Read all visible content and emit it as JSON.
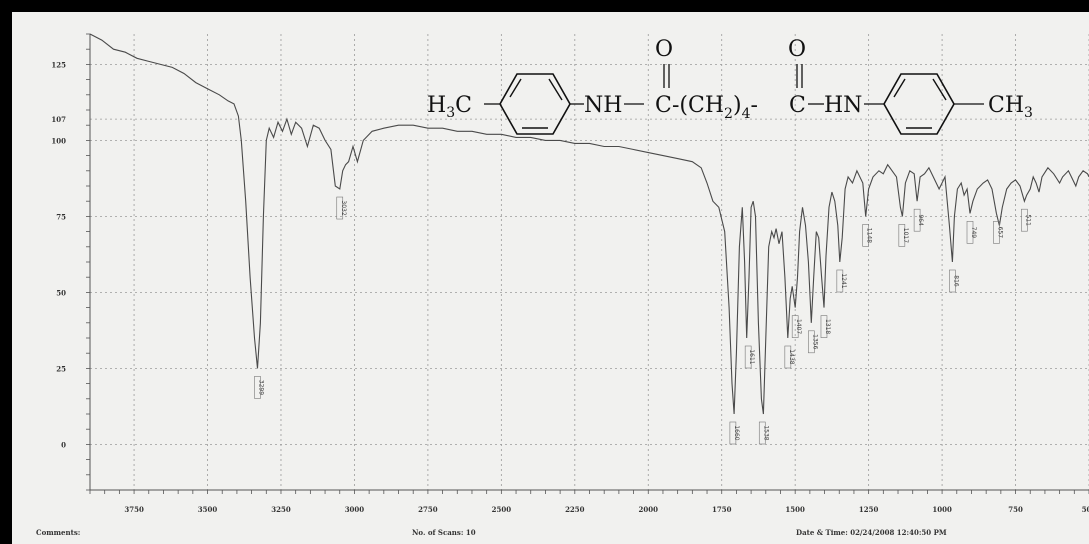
{
  "chart_data": {
    "type": "line",
    "title": "",
    "xlabel": "",
    "ylabel": "",
    "xlim": [
      3900,
      500
    ],
    "ylim": [
      -15,
      135
    ],
    "x_ticks": [
      {
        "value": 3750,
        "label": "3750"
      },
      {
        "value": 3500,
        "label": "3500"
      },
      {
        "value": 3250,
        "label": "3250"
      },
      {
        "value": 3000,
        "label": "3000"
      },
      {
        "value": 2750,
        "label": "2750"
      },
      {
        "value": 2500,
        "label": "2500"
      },
      {
        "value": 2250,
        "label": "2250"
      },
      {
        "value": 2000,
        "label": "2000"
      },
      {
        "value": 1750,
        "label": "1750"
      },
      {
        "value": 1500,
        "label": "1500"
      },
      {
        "value": 1250,
        "label": "1250"
      },
      {
        "value": 1000,
        "label": "1000"
      },
      {
        "value": 750,
        "label": "750"
      },
      {
        "value": 500,
        "label": "500"
      }
    ],
    "y_ticks": [
      {
        "value": 125,
        "label": "125"
      },
      {
        "value": 107,
        "label": "107"
      },
      {
        "value": 100,
        "label": "100"
      },
      {
        "value": 75,
        "label": "75"
      },
      {
        "value": 50,
        "label": "50"
      },
      {
        "value": 25,
        "label": "25"
      },
      {
        "value": 0,
        "label": "0"
      }
    ],
    "grid": true,
    "series": [
      {
        "points": [
          [
            3900,
            135
          ],
          [
            3860,
            133
          ],
          [
            3820,
            130
          ],
          [
            3780,
            129
          ],
          [
            3740,
            127
          ],
          [
            3700,
            126
          ],
          [
            3660,
            125
          ],
          [
            3620,
            124
          ],
          [
            3580,
            122
          ],
          [
            3540,
            119
          ],
          [
            3500,
            117
          ],
          [
            3460,
            115
          ],
          [
            3430,
            113
          ],
          [
            3410,
            112
          ],
          [
            3395,
            108
          ],
          [
            3385,
            100
          ],
          [
            3370,
            80
          ],
          [
            3355,
            55
          ],
          [
            3340,
            35
          ],
          [
            3330,
            25
          ],
          [
            3320,
            40
          ],
          [
            3310,
            75
          ],
          [
            3300,
            100
          ],
          [
            3290,
            104
          ],
          [
            3275,
            101
          ],
          [
            3260,
            106
          ],
          [
            3245,
            103
          ],
          [
            3230,
            107
          ],
          [
            3215,
            102
          ],
          [
            3200,
            106
          ],
          [
            3180,
            104
          ],
          [
            3160,
            98
          ],
          [
            3140,
            105
          ],
          [
            3120,
            104
          ],
          [
            3100,
            100
          ],
          [
            3080,
            97
          ],
          [
            3065,
            85
          ],
          [
            3050,
            84
          ],
          [
            3040,
            90
          ],
          [
            3030,
            92
          ],
          [
            3020,
            93
          ],
          [
            3005,
            98
          ],
          [
            2990,
            93
          ],
          [
            2970,
            100
          ],
          [
            2940,
            103
          ],
          [
            2900,
            104
          ],
          [
            2850,
            105
          ],
          [
            2800,
            105
          ],
          [
            2750,
            104
          ],
          [
            2700,
            104
          ],
          [
            2650,
            103
          ],
          [
            2600,
            103
          ],
          [
            2550,
            102
          ],
          [
            2500,
            102
          ],
          [
            2450,
            101
          ],
          [
            2400,
            101
          ],
          [
            2350,
            100
          ],
          [
            2300,
            100
          ],
          [
            2250,
            99
          ],
          [
            2200,
            99
          ],
          [
            2150,
            98
          ],
          [
            2100,
            98
          ],
          [
            2050,
            97
          ],
          [
            2000,
            96
          ],
          [
            1950,
            95
          ],
          [
            1900,
            94
          ],
          [
            1850,
            93
          ],
          [
            1820,
            91
          ],
          [
            1800,
            86
          ],
          [
            1780,
            80
          ],
          [
            1760,
            78
          ],
          [
            1740,
            70
          ],
          [
            1725,
            45
          ],
          [
            1715,
            20
          ],
          [
            1708,
            10
          ],
          [
            1700,
            30
          ],
          [
            1690,
            65
          ],
          [
            1680,
            78
          ],
          [
            1672,
            60
          ],
          [
            1665,
            35
          ],
          [
            1657,
            55
          ],
          [
            1650,
            78
          ],
          [
            1643,
            80
          ],
          [
            1635,
            75
          ],
          [
            1625,
            40
          ],
          [
            1615,
            15
          ],
          [
            1608,
            10
          ],
          [
            1600,
            35
          ],
          [
            1590,
            65
          ],
          [
            1580,
            70
          ],
          [
            1572,
            68
          ],
          [
            1565,
            71
          ],
          [
            1555,
            66
          ],
          [
            1545,
            70
          ],
          [
            1535,
            55
          ],
          [
            1525,
            35
          ],
          [
            1517,
            48
          ],
          [
            1510,
            52
          ],
          [
            1500,
            45
          ],
          [
            1492,
            55
          ],
          [
            1485,
            70
          ],
          [
            1475,
            78
          ],
          [
            1465,
            72
          ],
          [
            1455,
            60
          ],
          [
            1445,
            40
          ],
          [
            1437,
            55
          ],
          [
            1428,
            70
          ],
          [
            1420,
            68
          ],
          [
            1410,
            55
          ],
          [
            1402,
            45
          ],
          [
            1395,
            62
          ],
          [
            1385,
            78
          ],
          [
            1375,
            83
          ],
          [
            1365,
            80
          ],
          [
            1355,
            72
          ],
          [
            1348,
            60
          ],
          [
            1340,
            68
          ],
          [
            1330,
            84
          ],
          [
            1320,
            88
          ],
          [
            1305,
            86
          ],
          [
            1290,
            90
          ],
          [
            1270,
            86
          ],
          [
            1260,
            75
          ],
          [
            1250,
            84
          ],
          [
            1235,
            88
          ],
          [
            1215,
            90
          ],
          [
            1200,
            89
          ],
          [
            1185,
            92
          ],
          [
            1170,
            90
          ],
          [
            1155,
            88
          ],
          [
            1142,
            78
          ],
          [
            1135,
            75
          ],
          [
            1125,
            86
          ],
          [
            1110,
            90
          ],
          [
            1095,
            89
          ],
          [
            1085,
            80
          ],
          [
            1075,
            88
          ],
          [
            1060,
            89
          ],
          [
            1045,
            91
          ],
          [
            1030,
            88
          ],
          [
            1010,
            84
          ],
          [
            990,
            88
          ],
          [
            975,
            72
          ],
          [
            965,
            60
          ],
          [
            958,
            75
          ],
          [
            948,
            84
          ],
          [
            935,
            86
          ],
          [
            925,
            82
          ],
          [
            915,
            84
          ],
          [
            905,
            76
          ],
          [
            895,
            80
          ],
          [
            880,
            84
          ],
          [
            860,
            86
          ],
          [
            845,
            87
          ],
          [
            830,
            84
          ],
          [
            815,
            76
          ],
          [
            805,
            72
          ],
          [
            795,
            78
          ],
          [
            780,
            84
          ],
          [
            765,
            86
          ],
          [
            750,
            87
          ],
          [
            735,
            85
          ],
          [
            720,
            80
          ],
          [
            712,
            82
          ],
          [
            700,
            84
          ],
          [
            690,
            88
          ],
          [
            680,
            86
          ],
          [
            670,
            83
          ],
          [
            660,
            88
          ],
          [
            640,
            91
          ],
          [
            620,
            89
          ],
          [
            600,
            86
          ],
          [
            590,
            88
          ],
          [
            570,
            90
          ],
          [
            560,
            88
          ],
          [
            545,
            85
          ],
          [
            535,
            88
          ],
          [
            520,
            90
          ],
          [
            505,
            89
          ],
          [
            500,
            88
          ]
        ]
      }
    ],
    "peak_labels": [
      {
        "x": 3330,
        "y": 25,
        "label": "3299"
      },
      {
        "x": 3050,
        "y": 84,
        "label": "3032"
      },
      {
        "x": 1712,
        "y": 10,
        "label": "1660"
      },
      {
        "x": 1660,
        "y": 35,
        "label": "1611"
      },
      {
        "x": 1612,
        "y": 10,
        "label": "1538"
      },
      {
        "x": 1525,
        "y": 35,
        "label": "1438"
      },
      {
        "x": 1500,
        "y": 45,
        "label": "1407"
      },
      {
        "x": 1445,
        "y": 40,
        "label": "1356"
      },
      {
        "x": 1402,
        "y": 45,
        "label": "1318"
      },
      {
        "x": 1348,
        "y": 60,
        "label": "1241"
      },
      {
        "x": 1260,
        "y": 75,
        "label": "1148"
      },
      {
        "x": 1137,
        "y": 75,
        "label": "1017"
      },
      {
        "x": 1085,
        "y": 80,
        "label": "964"
      },
      {
        "x": 965,
        "y": 60,
        "label": "816"
      },
      {
        "x": 905,
        "y": 76,
        "label": "749"
      },
      {
        "x": 815,
        "y": 76,
        "label": "657"
      },
      {
        "x": 720,
        "y": 80,
        "label": "511"
      }
    ]
  },
  "structure": {
    "left_group": "H",
    "left_sub": "3",
    "left_c": "C",
    "nh_left": "NH",
    "o_left": "O",
    "c_left": "C",
    "chain_open": "-(CH",
    "chain_sub2": "2",
    "chain_close": ")",
    "chain_sub4": "4",
    "dash": "-",
    "o_right": "O",
    "c_right": "C",
    "hn_right": "HN",
    "right_group": "CH",
    "right_sub": "3"
  },
  "footer": {
    "comment": "Comments:",
    "scans": "No. of Scans: 10",
    "datetime": "Date & Time: 02/24/2008 12:40:50 PM"
  }
}
